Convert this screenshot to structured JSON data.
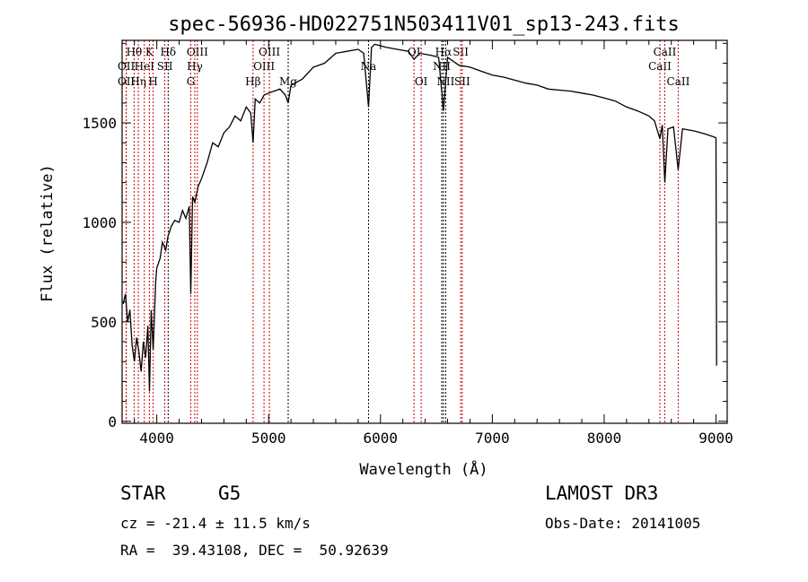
{
  "chart_data": {
    "type": "line",
    "title": "spec-56936-HD022751N503411V01_sp13-243.fits",
    "xlabel": "Wavelength (Å)",
    "ylabel": "Flux (relative)",
    "xlim": [
      3690,
      9100
    ],
    "ylim": [
      -10,
      1915
    ],
    "xticks": [
      4000,
      5000,
      6000,
      7000,
      8000,
      9000
    ],
    "yticks": [
      0,
      500,
      1000,
      1500
    ],
    "grid": false,
    "series": [
      {
        "name": "spectrum",
        "x": [
          3700,
          3720,
          3740,
          3760,
          3780,
          3800,
          3820,
          3840,
          3860,
          3880,
          3900,
          3920,
          3935,
          3950,
          3968,
          3990,
          4000,
          4030,
          4050,
          4080,
          4100,
          4130,
          4160,
          4200,
          4230,
          4260,
          4290,
          4304,
          4320,
          4340,
          4370,
          4400,
          4450,
          4500,
          4550,
          4600,
          4650,
          4700,
          4750,
          4800,
          4840,
          4861,
          4880,
          4920,
          4960,
          5000,
          5050,
          5100,
          5150,
          5175,
          5200,
          5300,
          5400,
          5500,
          5600,
          5700,
          5800,
          5850,
          5893,
          5920,
          5950,
          6050,
          6150,
          6250,
          6300,
          6350,
          6450,
          6520,
          6563,
          6600,
          6650,
          6700,
          6800,
          6900,
          7000,
          7100,
          7200,
          7300,
          7400,
          7500,
          7600,
          7700,
          7800,
          7900,
          8000,
          8100,
          8200,
          8300,
          8400,
          8450,
          8498,
          8520,
          8542,
          8570,
          8620,
          8662,
          8700,
          8800,
          8900,
          8980,
          9000,
          9005
        ],
        "y": [
          590,
          640,
          500,
          560,
          380,
          300,
          420,
          350,
          250,
          400,
          320,
          480,
          150,
          560,
          360,
          700,
          770,
          820,
          900,
          860,
          930,
          980,
          1010,
          1000,
          1060,
          1020,
          1080,
          640,
          1130,
          1100,
          1180,
          1220,
          1300,
          1400,
          1380,
          1450,
          1480,
          1535,
          1510,
          1580,
          1550,
          1400,
          1620,
          1600,
          1640,
          1650,
          1660,
          1670,
          1640,
          1600,
          1690,
          1720,
          1780,
          1800,
          1850,
          1860,
          1870,
          1850,
          1580,
          1880,
          1895,
          1880,
          1870,
          1860,
          1820,
          1850,
          1840,
          1830,
          1560,
          1830,
          1810,
          1790,
          1780,
          1760,
          1740,
          1730,
          1715,
          1700,
          1690,
          1670,
          1665,
          1660,
          1650,
          1640,
          1625,
          1610,
          1580,
          1560,
          1535,
          1510,
          1420,
          1490,
          1200,
          1470,
          1480,
          1265,
          1470,
          1460,
          1445,
          1430,
          1425,
          280
        ]
      }
    ],
    "lines": [
      {
        "label": "OII",
        "wl": 3727,
        "row": 2,
        "color": "#cc0000"
      },
      {
        "label": "OII",
        "wl": 3727,
        "row": 3,
        "color": "#cc0000"
      },
      {
        "label": "Hθ",
        "wl": 3798,
        "row": 1,
        "color": "#cc0000"
      },
      {
        "label": "Hη",
        "wl": 3835,
        "row": 3,
        "color": "#cc0000"
      },
      {
        "label": "HeI",
        "wl": 3889,
        "row": 2,
        "color": "#cc0000"
      },
      {
        "label": "K",
        "wl": 3934,
        "row": 1,
        "color": "#cc0000"
      },
      {
        "label": "H",
        "wl": 3968,
        "row": 3,
        "color": "#cc0000"
      },
      {
        "label": "SII",
        "wl": 4072,
        "row": 2,
        "color": "#cc0000"
      },
      {
        "label": "Hδ",
        "wl": 4102,
        "row": 1,
        "color": "#000000"
      },
      {
        "label": "G",
        "wl": 4304,
        "row": 3,
        "color": "#cc0000"
      },
      {
        "label": "Hγ",
        "wl": 4340,
        "row": 2,
        "color": "#cc0000"
      },
      {
        "label": "OIII",
        "wl": 4363,
        "row": 1,
        "color": "#cc0000"
      },
      {
        "label": "Hβ",
        "wl": 4861,
        "row": 3,
        "color": "#cc0000"
      },
      {
        "label": "OIII",
        "wl": 4959,
        "row": 2,
        "color": "#cc0000"
      },
      {
        "label": "OIII",
        "wl": 5007,
        "row": 1,
        "color": "#cc0000"
      },
      {
        "label": "Mg",
        "wl": 5175,
        "row": 3,
        "color": "#000000"
      },
      {
        "label": "Na",
        "wl": 5893,
        "row": 2,
        "color": "#000000"
      },
      {
        "label": "OI",
        "wl": 6300,
        "row": 1,
        "color": "#cc0000"
      },
      {
        "label": "OI",
        "wl": 6364,
        "row": 3,
        "color": "#cc0000"
      },
      {
        "label": "NII",
        "wl": 6548,
        "row": 2,
        "color": "#000000"
      },
      {
        "label": "Hα",
        "wl": 6563,
        "row": 1,
        "color": "#000000"
      },
      {
        "label": "NII",
        "wl": 6583,
        "row": 3,
        "color": "#000000"
      },
      {
        "label": "SII",
        "wl": 6717,
        "row": 1,
        "color": "#cc0000"
      },
      {
        "label": "SII",
        "wl": 6731,
        "row": 3,
        "color": "#cc0000"
      },
      {
        "label": "CaII",
        "wl": 8498,
        "row": 2,
        "color": "#cc0000"
      },
      {
        "label": "CaII",
        "wl": 8542,
        "row": 1,
        "color": "#cc0000"
      },
      {
        "label": "CaII",
        "wl": 8662,
        "row": 3,
        "color": "#cc0000"
      }
    ]
  },
  "info": {
    "object_type": "STAR",
    "subclass": "G5",
    "cz": "cz = -21.4 ± 11.5 km/s",
    "coords": "RA =  39.43108, DEC =  50.92639",
    "survey": "LAMOST DR3",
    "obs_date": "Obs-Date: 20141005"
  }
}
